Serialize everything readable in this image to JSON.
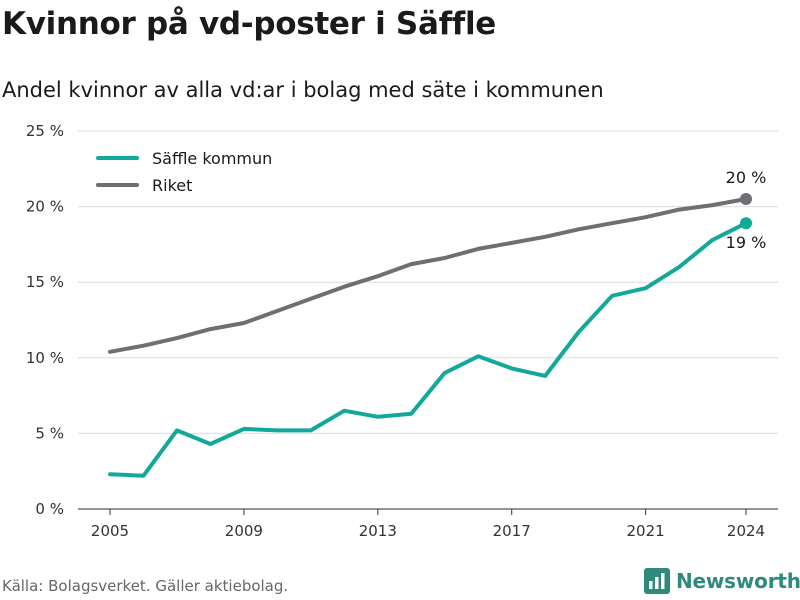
{
  "title": "Kvinnor på vd-poster i Säffle",
  "subtitle": "Andel kvinnor av alla vd:ar i bolag med säte i kommunen",
  "source": "Källa: Bolagsverket. Gäller aktiebolag.",
  "brand": {
    "name": "Newsworthy",
    "icon": "bar-chart-logo-icon",
    "color": "#2f8a7c"
  },
  "chart_data": {
    "type": "line",
    "x": [
      2005,
      2006,
      2007,
      2008,
      2009,
      2010,
      2011,
      2012,
      2013,
      2014,
      2015,
      2016,
      2017,
      2018,
      2019,
      2020,
      2021,
      2022,
      2023,
      2024
    ],
    "series": [
      {
        "name": "Säffle kommun",
        "color": "#12a89a",
        "values": [
          2.3,
          2.2,
          5.2,
          4.3,
          5.3,
          5.2,
          5.2,
          6.5,
          6.1,
          6.3,
          9.0,
          10.1,
          9.3,
          8.8,
          11.7,
          14.1,
          14.6,
          16.0,
          17.8,
          18.9
        ],
        "end_label": "19 %"
      },
      {
        "name": "Riket",
        "color": "#6e6e73",
        "values": [
          10.4,
          10.8,
          11.3,
          11.9,
          12.3,
          13.1,
          13.9,
          14.7,
          15.4,
          16.2,
          16.6,
          17.2,
          17.6,
          18.0,
          18.5,
          18.9,
          19.3,
          19.8,
          20.1,
          20.5
        ],
        "end_label": "20 %"
      }
    ],
    "x_ticks": [
      2005,
      2009,
      2013,
      2017,
      2021,
      2024
    ],
    "y_ticks": [
      0,
      5,
      10,
      15,
      20,
      25
    ],
    "y_tick_labels": [
      "0 %",
      "5 %",
      "10 %",
      "15 %",
      "20 %",
      "25 %"
    ],
    "ylim": [
      0,
      25
    ],
    "xlim": [
      2005,
      2024
    ],
    "grid": "horizontal",
    "legend_position": "top-left"
  }
}
